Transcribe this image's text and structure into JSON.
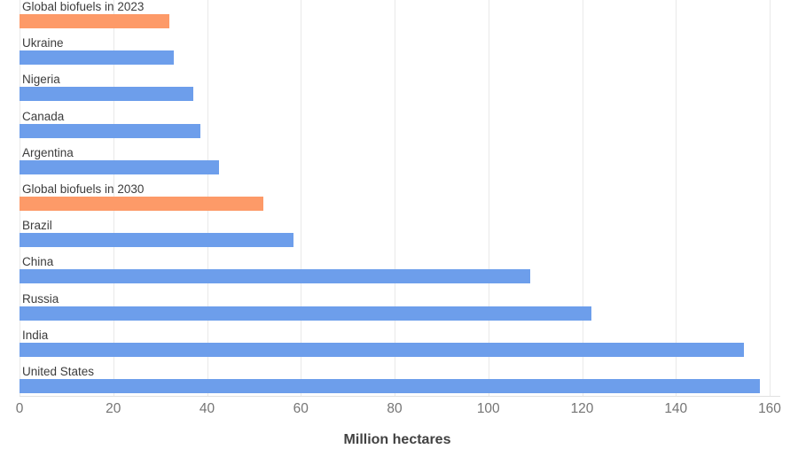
{
  "colors": {
    "country_bar": "#6D9EEB",
    "biofuels_bar": "#FD9A68",
    "gridline": "#e9e9e9",
    "axis_line": "#e0e0e0",
    "tick_text": "#757575",
    "label_text": "#3c3c3c",
    "axis_title_text": "#424242"
  },
  "chart_data": {
    "type": "bar",
    "orientation": "horizontal",
    "title": "",
    "xlabel": "Million hectares",
    "ylabel": "",
    "xlim": [
      0,
      160
    ],
    "xticks": [
      0,
      20,
      40,
      60,
      80,
      100,
      120,
      140,
      160
    ],
    "grid": true,
    "legend": false,
    "categories": [
      "Global biofuels in 2023",
      "Ukraine",
      "Nigeria",
      "Canada",
      "Argentina",
      "Global biofuels in 2030",
      "Brazil",
      "China",
      "Russia",
      "India",
      "United States"
    ],
    "values": [
      32,
      33,
      37,
      38.5,
      42.5,
      52,
      58.5,
      109,
      122,
      154.5,
      158
    ],
    "bar_colors": [
      "#FD9A68",
      "#6D9EEB",
      "#6D9EEB",
      "#6D9EEB",
      "#6D9EEB",
      "#FD9A68",
      "#6D9EEB",
      "#6D9EEB",
      "#6D9EEB",
      "#6D9EEB",
      "#6D9EEB"
    ]
  }
}
